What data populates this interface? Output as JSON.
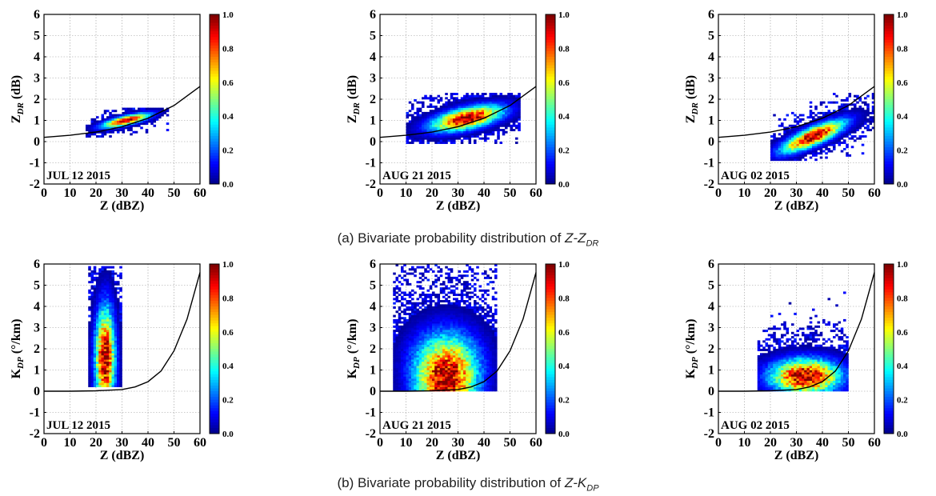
{
  "colormap": [
    "#00007f",
    "#0000ff",
    "#007fff",
    "#00ffff",
    "#7fff7f",
    "#ffff00",
    "#ff7f00",
    "#ff0000",
    "#7f0000"
  ],
  "captions": [
    {
      "prefix": "(a) Bivariate probability distribution of ",
      "var": "Z-Z",
      "sub": "DR"
    },
    {
      "prefix": "(b) Bivariate probability distribution of ",
      "var": "Z-K",
      "sub": "DP"
    }
  ],
  "chart_data": [
    {
      "type": "heatmap",
      "label": "JUL 12 2015",
      "xlabel": "Z (dBZ)",
      "ylabel_main": "Z",
      "ylabel_sub": "DR",
      "ylabel_unit": " (dB)",
      "xlim": [
        0,
        60
      ],
      "ylim": [
        -2,
        6
      ],
      "xticks": [
        0,
        10,
        20,
        30,
        40,
        50,
        60
      ],
      "yticks": [
        -2,
        -1,
        0,
        1,
        2,
        3,
        4,
        5,
        6
      ],
      "colorbar": {
        "ticks": [
          "0.0",
          "0.2",
          "0.4",
          "0.6",
          "0.8",
          "1.0"
        ],
        "range": [
          0,
          1
        ]
      },
      "fit_curve": {
        "x": [
          0,
          10,
          20,
          30,
          40,
          50,
          60
        ],
        "y": [
          0.2,
          0.3,
          0.45,
          0.7,
          1.1,
          1.7,
          2.6
        ]
      },
      "density": {
        "kind": "ellipse",
        "center": [
          31,
          0.95
        ],
        "sx": 6,
        "sy": 0.22,
        "rho": 0.75,
        "xr": [
          16,
          48
        ],
        "yr": [
          0.2,
          1.6
        ],
        "noise": 0.2
      }
    },
    {
      "type": "heatmap",
      "label": "AUG 21 2015",
      "xlabel": "Z (dBZ)",
      "ylabel_main": "Z",
      "ylabel_sub": "DR",
      "ylabel_unit": " (dB)",
      "xlim": [
        0,
        60
      ],
      "ylim": [
        -2,
        6
      ],
      "xticks": [
        0,
        10,
        20,
        30,
        40,
        50,
        60
      ],
      "yticks": [
        -2,
        -1,
        0,
        1,
        2,
        3,
        4,
        5,
        6
      ],
      "colorbar": {
        "ticks": [
          "0.0",
          "0.2",
          "0.4",
          "0.6",
          "0.8",
          "1.0"
        ],
        "range": [
          0,
          1
        ]
      },
      "fit_curve": {
        "x": [
          0,
          10,
          20,
          30,
          40,
          50,
          60
        ],
        "y": [
          0.2,
          0.3,
          0.45,
          0.7,
          1.1,
          1.7,
          2.6
        ]
      },
      "density": {
        "kind": "ellipse",
        "center": [
          33,
          1.05
        ],
        "sx": 9,
        "sy": 0.4,
        "rho": 0.55,
        "xr": [
          10,
          54
        ],
        "yr": [
          -0.1,
          2.3
        ],
        "noise": 0.35
      }
    },
    {
      "type": "heatmap",
      "label": "AUG 02 2015",
      "xlabel": "Z (dBZ)",
      "ylabel_main": "Z",
      "ylabel_sub": "DR",
      "ylabel_unit": " (dB)",
      "xlim": [
        0,
        60
      ],
      "ylim": [
        -2,
        6
      ],
      "xticks": [
        0,
        10,
        20,
        30,
        40,
        50,
        60
      ],
      "yticks": [
        -2,
        -1,
        0,
        1,
        2,
        3,
        4,
        5,
        6
      ],
      "colorbar": {
        "ticks": [
          "0.0",
          "0.2",
          "0.4",
          "0.6",
          "0.8",
          "1.0"
        ],
        "range": [
          0,
          1
        ]
      },
      "fit_curve": {
        "x": [
          0,
          10,
          20,
          30,
          40,
          50,
          60
        ],
        "y": [
          0.2,
          0.3,
          0.45,
          0.7,
          1.1,
          1.7,
          2.6
        ]
      },
      "density": {
        "kind": "ellipse",
        "center": [
          36,
          0.2
        ],
        "sx": 8,
        "sy": 0.5,
        "rho": 0.8,
        "xr": [
          20,
          60
        ],
        "yr": [
          -0.9,
          2.4
        ],
        "noise": 0.35
      }
    },
    {
      "type": "heatmap",
      "label": "JUL 12 2015",
      "xlabel": "Z (dBZ)",
      "ylabel_main": "K",
      "ylabel_sub": "DP",
      "ylabel_unit": " (°/km)",
      "xlim": [
        0,
        60
      ],
      "ylim": [
        -2,
        6
      ],
      "xticks": [
        0,
        10,
        20,
        30,
        40,
        50,
        60
      ],
      "yticks": [
        -2,
        -1,
        0,
        1,
        2,
        3,
        4,
        5,
        6
      ],
      "colorbar": {
        "ticks": [
          "0.0",
          "0.2",
          "0.4",
          "0.6",
          "0.8",
          "1.0"
        ],
        "range": [
          0,
          1
        ]
      },
      "fit_curve": {
        "x": [
          0,
          10,
          20,
          30,
          35,
          40,
          45,
          50,
          55,
          60
        ],
        "y": [
          0,
          0,
          0.02,
          0.08,
          0.2,
          0.45,
          0.95,
          1.9,
          3.4,
          5.6
        ]
      },
      "density": {
        "kind": "column",
        "center": [
          23,
          1.5
        ],
        "sx": 2.5,
        "sy": 1.6,
        "rho": 0,
        "xr": [
          17,
          30
        ],
        "yr": [
          0.2,
          5.8
        ],
        "noise": 0.5
      }
    },
    {
      "type": "heatmap",
      "label": "AUG 21 2015",
      "xlabel": "Z (dBZ)",
      "ylabel_main": "K",
      "ylabel_sub": "DP",
      "ylabel_unit": " (°/km)",
      "xlim": [
        0,
        60
      ],
      "ylim": [
        -2,
        6
      ],
      "xticks": [
        0,
        10,
        20,
        30,
        40,
        50,
        60
      ],
      "yticks": [
        -2,
        -1,
        0,
        1,
        2,
        3,
        4,
        5,
        6
      ],
      "colorbar": {
        "ticks": [
          "0.0",
          "0.2",
          "0.4",
          "0.6",
          "0.8",
          "1.0"
        ],
        "range": [
          0,
          1
        ]
      },
      "fit_curve": {
        "x": [
          0,
          10,
          20,
          30,
          35,
          40,
          45,
          50,
          55,
          60
        ],
        "y": [
          0,
          0,
          0.02,
          0.08,
          0.2,
          0.45,
          0.95,
          1.9,
          3.4,
          5.6
        ]
      },
      "density": {
        "kind": "mound",
        "center": [
          25,
          0.6
        ],
        "sx": 8,
        "sy": 1.3,
        "rho": 0,
        "xr": [
          5,
          45
        ],
        "yr": [
          0,
          5.9
        ],
        "noise": 0.45
      }
    },
    {
      "type": "heatmap",
      "label": "AUG 02 2015",
      "xlabel": "Z (dBZ)",
      "ylabel_main": "K",
      "ylabel_sub": "DP",
      "ylabel_unit": " (°/km)",
      "xlim": [
        0,
        60
      ],
      "ylim": [
        -2,
        6
      ],
      "xticks": [
        0,
        10,
        20,
        30,
        40,
        50,
        60
      ],
      "yticks": [
        -2,
        -1,
        0,
        1,
        2,
        3,
        4,
        5,
        6
      ],
      "colorbar": {
        "ticks": [
          "0.0",
          "0.2",
          "0.4",
          "0.6",
          "0.8",
          "1.0"
        ],
        "range": [
          0,
          1
        ]
      },
      "fit_curve": {
        "x": [
          0,
          10,
          20,
          30,
          35,
          40,
          45,
          50,
          55,
          60
        ],
        "y": [
          0,
          0,
          0.02,
          0.08,
          0.2,
          0.45,
          0.95,
          1.9,
          3.4,
          5.6
        ]
      },
      "density": {
        "kind": "band",
        "center": [
          33,
          0.65
        ],
        "sx": 8,
        "sy": 0.55,
        "rho": 0,
        "xr": [
          15,
          50
        ],
        "yr": [
          0,
          4.8
        ],
        "noise": 0.45
      }
    }
  ]
}
